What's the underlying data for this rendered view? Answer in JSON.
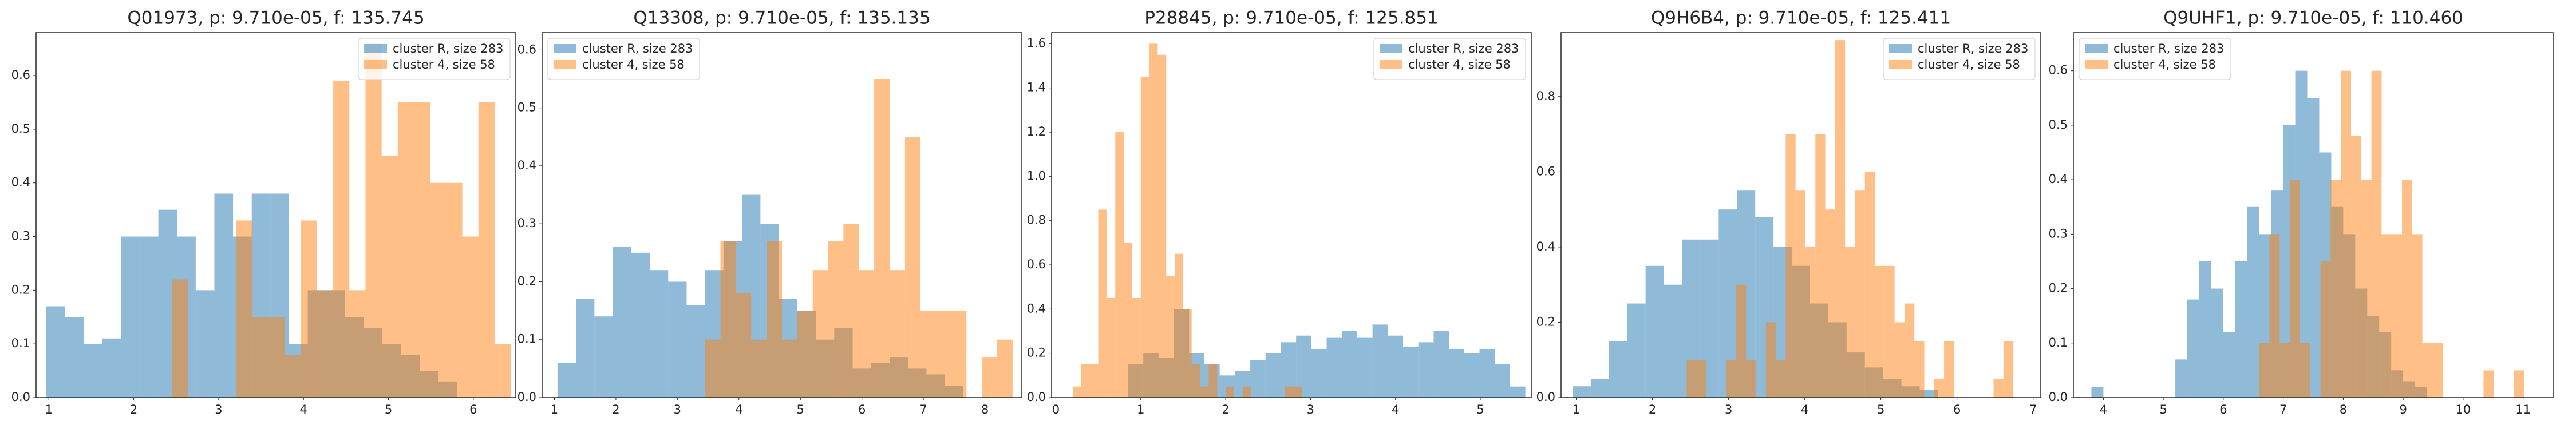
{
  "chart_data": [
    {
      "type": "histogram",
      "title": "Q01973, p: 9.710e-05, f: 135.745",
      "xlim": [
        0.85,
        6.5
      ],
      "xticks": [
        1,
        2,
        3,
        4,
        5,
        6
      ],
      "ylim": [
        0,
        0.68
      ],
      "yticks": [
        {
          "value": 0,
          "label": "0.0"
        },
        0.1,
        0.2,
        0.3,
        0.4,
        0.5,
        0.6
      ],
      "legend": "upper right",
      "series": [
        {
          "name": "cluster R, size 283",
          "color": "#1f77b4",
          "bins": [
            0.97,
            1.19,
            1.41,
            1.63,
            1.85,
            2.07,
            2.29,
            2.51,
            2.73,
            2.95,
            3.17,
            3.39,
            3.61,
            3.83,
            4.05,
            4.27,
            4.49,
            4.71,
            4.93,
            5.15,
            5.37,
            5.59,
            5.81
          ],
          "values": [
            0.17,
            0.15,
            0.1,
            0.11,
            0.3,
            0.3,
            0.35,
            0.3,
            0.2,
            0.38,
            0.3,
            0.38,
            0.38,
            0.1,
            0.2,
            0.2,
            0.15,
            0.13,
            0.1,
            0.08,
            0.05,
            0.03
          ]
        },
        {
          "name": "cluster 4, size 58",
          "color": "#ff7f0e",
          "bins": [
            2.45,
            2.64,
            2.83,
            3.02,
            3.21,
            3.4,
            3.59,
            3.78,
            3.97,
            4.16,
            4.35,
            4.54,
            4.73,
            4.92,
            5.11,
            5.3,
            5.49,
            5.68,
            5.87,
            6.06,
            6.25,
            6.44
          ],
          "values": [
            0.22,
            0,
            0,
            0,
            0.33,
            0.15,
            0.15,
            0.08,
            0.33,
            0.2,
            0.59,
            0.2,
            0.66,
            0.45,
            0.55,
            0.55,
            0.4,
            0.4,
            0.3,
            0.55,
            0.1
          ]
        }
      ]
    },
    {
      "type": "histogram",
      "title": "Q13308, p: 9.710e-05, f: 135.135",
      "xlim": [
        0.8,
        8.6
      ],
      "xticks": [
        1,
        2,
        3,
        4,
        5,
        6,
        7,
        8
      ],
      "ylim": [
        0,
        0.63
      ],
      "yticks": [
        {
          "value": 0,
          "label": "0.0"
        },
        0.1,
        0.2,
        0.3,
        0.4,
        0.5,
        0.6
      ],
      "legend": "upper left",
      "series": [
        {
          "name": "cluster R, size 283",
          "color": "#1f77b4",
          "bins": [
            1.05,
            1.35,
            1.65,
            1.95,
            2.25,
            2.55,
            2.85,
            3.15,
            3.45,
            3.75,
            4.05,
            4.35,
            4.65,
            4.95,
            5.25,
            5.55,
            5.85,
            6.15,
            6.45,
            6.75,
            7.05,
            7.35,
            7.65
          ],
          "values": [
            0.06,
            0.17,
            0.14,
            0.26,
            0.25,
            0.22,
            0.2,
            0.16,
            0.22,
            0.27,
            0.35,
            0.3,
            0.17,
            0.15,
            0.1,
            0.12,
            0.05,
            0.06,
            0.07,
            0.05,
            0.04,
            0.02
          ]
        },
        {
          "name": "cluster 4, size 58",
          "color": "#ff7f0e",
          "bins": [
            3.45,
            3.7,
            3.95,
            4.2,
            4.45,
            4.7,
            4.95,
            5.2,
            5.45,
            5.7,
            5.95,
            6.2,
            6.45,
            6.7,
            6.95,
            7.2,
            7.45,
            7.7,
            7.95,
            8.2,
            8.45
          ],
          "values": [
            0.1,
            0.27,
            0.18,
            0.1,
            0.27,
            0.1,
            0.15,
            0.22,
            0.27,
            0.3,
            0.22,
            0.55,
            0.22,
            0.45,
            0.15,
            0.15,
            0.15,
            0,
            0.07,
            0.1
          ]
        }
      ]
    },
    {
      "type": "histogram",
      "title": "P28845, p: 9.710e-05, f: 125.851",
      "xlim": [
        -0.05,
        5.6
      ],
      "xticks": [
        0,
        1,
        2,
        3,
        4,
        5
      ],
      "ylim": [
        0,
        1.65
      ],
      "yticks": [
        {
          "value": 0,
          "label": "0.0"
        },
        0.2,
        0.4,
        0.6,
        0.8,
        {
          "value": 1,
          "label": "1.0"
        },
        1.2,
        1.4,
        1.6
      ],
      "legend": "upper right",
      "series": [
        {
          "name": "cluster R, size 283",
          "color": "#1f77b4",
          "bins": [
            0.85,
            1.03,
            1.21,
            1.39,
            1.57,
            1.75,
            1.93,
            2.11,
            2.29,
            2.47,
            2.65,
            2.83,
            3.01,
            3.19,
            3.37,
            3.55,
            3.73,
            3.91,
            4.09,
            4.27,
            4.45,
            4.63,
            4.81,
            4.99,
            5.17,
            5.35,
            5.53
          ],
          "values": [
            0.15,
            0.2,
            0.18,
            0.4,
            0.2,
            0.15,
            0.1,
            0.12,
            0.17,
            0.2,
            0.25,
            0.28,
            0.22,
            0.27,
            0.3,
            0.27,
            0.33,
            0.28,
            0.23,
            0.25,
            0.3,
            0.22,
            0.2,
            0.22,
            0.15,
            0.05
          ]
        },
        {
          "name": "cluster 4, size 58",
          "color": "#ff7f0e",
          "bins": [
            0.2,
            0.3,
            0.4,
            0.5,
            0.6,
            0.7,
            0.8,
            0.9,
            1.0,
            1.1,
            1.2,
            1.3,
            1.4,
            1.5,
            1.6,
            1.7,
            1.8,
            1.9,
            2.0,
            2.1,
            2.2,
            2.3,
            2.4,
            2.5,
            2.6,
            2.7,
            2.8,
            2.9
          ],
          "values": [
            0.05,
            0.15,
            0.15,
            0.85,
            0.45,
            1.2,
            0.7,
            0.45,
            1.45,
            1.6,
            1.55,
            0.55,
            0.65,
            0.4,
            0.15,
            0.05,
            0.15,
            0,
            0.05,
            0,
            0.05,
            0,
            0,
            0,
            0,
            0.05,
            0.05
          ]
        }
      ]
    },
    {
      "type": "histogram",
      "title": "Q9H6B4, p: 9.710e-05, f: 125.411",
      "xlim": [
        0.8,
        7.1
      ],
      "xticks": [
        1,
        2,
        3,
        4,
        5,
        6,
        7
      ],
      "ylim": [
        0,
        0.97
      ],
      "yticks": [
        {
          "value": 0,
          "label": "0.0"
        },
        0.2,
        0.4,
        0.6,
        0.8
      ],
      "legend": "upper right",
      "series": [
        {
          "name": "cluster R, size 283",
          "color": "#1f77b4",
          "bins": [
            0.95,
            1.19,
            1.43,
            1.67,
            1.91,
            2.15,
            2.39,
            2.63,
            2.87,
            3.11,
            3.35,
            3.59,
            3.83,
            4.07,
            4.31,
            4.55,
            4.79,
            5.03,
            5.27,
            5.51,
            5.75
          ],
          "values": [
            0.03,
            0.05,
            0.15,
            0.25,
            0.35,
            0.3,
            0.42,
            0.42,
            0.5,
            0.55,
            0.48,
            0.4,
            0.35,
            0.25,
            0.2,
            0.12,
            0.08,
            0.05,
            0.03,
            0.02
          ]
        },
        {
          "name": "cluster 4, size 58",
          "color": "#ff7f0e",
          "bins": [
            2.45,
            2.58,
            2.71,
            2.84,
            2.97,
            3.1,
            3.23,
            3.36,
            3.49,
            3.62,
            3.75,
            3.88,
            4.01,
            4.14,
            4.27,
            4.4,
            4.53,
            4.66,
            4.79,
            4.92,
            5.05,
            5.18,
            5.31,
            5.44,
            5.57,
            5.7,
            5.83,
            5.96,
            6.09,
            6.22,
            6.35,
            6.48,
            6.61,
            6.74
          ],
          "values": [
            0.1,
            0.1,
            0,
            0,
            0.1,
            0.3,
            0.1,
            0,
            0.2,
            0.1,
            0.7,
            0.55,
            0.4,
            0.7,
            0.5,
            0.95,
            0.4,
            0.55,
            0.6,
            0.35,
            0.35,
            0.2,
            0.25,
            0.15,
            0,
            0.05,
            0.15,
            0,
            0,
            0,
            0,
            0.05,
            0.15
          ]
        }
      ]
    },
    {
      "type": "histogram",
      "title": "Q9UHF1, p: 9.710e-05, f: 110.460",
      "xlim": [
        3.5,
        11.5
      ],
      "xticks": [
        4,
        5,
        6,
        7,
        8,
        9,
        10,
        11
      ],
      "ylim": [
        0,
        0.67
      ],
      "yticks": [
        {
          "value": 0,
          "label": "0.0"
        },
        0.1,
        0.2,
        0.3,
        0.4,
        0.5,
        0.6
      ],
      "legend": "upper left",
      "series": [
        {
          "name": "cluster R, size 283",
          "color": "#1f77b4",
          "bins": [
            3.8,
            4.0,
            4.2,
            4.4,
            4.6,
            4.8,
            5.0,
            5.2,
            5.4,
            5.6,
            5.8,
            6.0,
            6.2,
            6.4,
            6.6,
            6.8,
            7.0,
            7.2,
            7.4,
            7.6,
            7.8,
            8.0,
            8.2,
            8.4,
            8.6,
            8.8,
            9.0,
            9.2,
            9.4
          ],
          "values": [
            0.02,
            0,
            0,
            0,
            0,
            0,
            0,
            0.07,
            0.18,
            0.25,
            0.2,
            0.12,
            0.25,
            0.35,
            0.3,
            0.38,
            0.5,
            0.6,
            0.55,
            0.45,
            0.35,
            0.3,
            0.2,
            0.15,
            0.12,
            0.05,
            0.03,
            0.02
          ]
        },
        {
          "name": "cluster 4, size 58",
          "color": "#ff7f0e",
          "bins": [
            6.6,
            6.77,
            6.94,
            7.11,
            7.28,
            7.45,
            7.62,
            7.79,
            7.96,
            8.13,
            8.3,
            8.47,
            8.64,
            8.81,
            8.98,
            9.15,
            9.32,
            9.49,
            9.66,
            9.83,
            10.0,
            10.17,
            10.34,
            10.51,
            10.68,
            10.85,
            11.02
          ],
          "values": [
            0.1,
            0.3,
            0.1,
            0.4,
            0.1,
            0,
            0.25,
            0.4,
            0.6,
            0.48,
            0.4,
            0.6,
            0.3,
            0.3,
            0.4,
            0.3,
            0.1,
            0.1,
            0,
            0,
            0,
            0,
            0.05,
            0,
            0,
            0.05
          ]
        }
      ]
    }
  ]
}
